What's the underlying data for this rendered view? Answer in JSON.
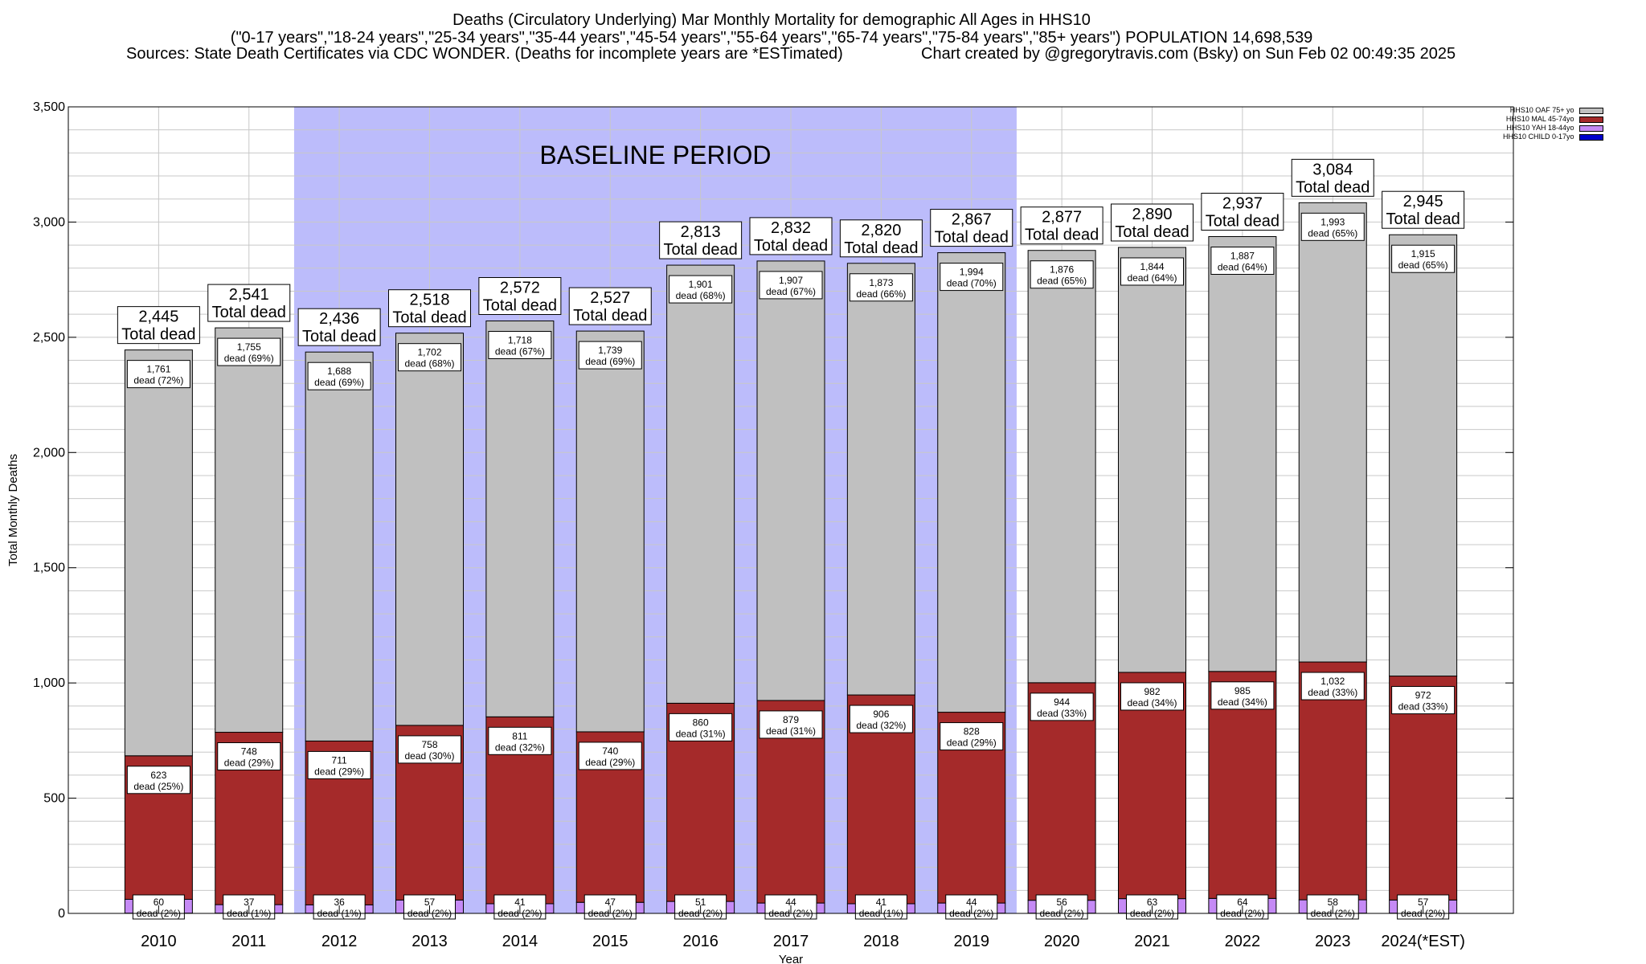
{
  "header": {
    "line1": "Deaths (Circulatory Underlying) Mar Monthly Mortality for demographic All Ages in HHS10",
    "line2": "(\"0-17 years\",\"18-24 years\",\"25-34 years\",\"35-44 years\",\"45-54 years\",\"55-64 years\",\"65-74 years\",\"75-84 years\",\"85+ years\") POPULATION 14,698,539",
    "line3_left": "Sources: State Death Certificates via CDC WONDER. (Deaths for incomplete years are *ESTimated)",
    "line3_right": "Chart created by @gregorytravis.com (Bsky) on Sun Feb 02 00:49:35 2025"
  },
  "chart_data": {
    "type": "bar",
    "stacked": true,
    "ylabel": "Total Monthly Deaths",
    "xlabel": "Year",
    "ylim": [
      0,
      3500
    ],
    "yticks": [
      "0",
      "500",
      "1,000",
      "1,500",
      "2,000",
      "2,500",
      "3,000",
      "3,500"
    ],
    "yticks_values": [
      0,
      500,
      1000,
      1500,
      2000,
      2500,
      3000,
      3500
    ],
    "grid": true,
    "baseline_label": "BASELINE PERIOD",
    "baseline_range": [
      "2012",
      "2019"
    ],
    "categories": [
      "2010",
      "2011",
      "2012",
      "2013",
      "2014",
      "2015",
      "2016",
      "2017",
      "2018",
      "2019",
      "2020",
      "2021",
      "2022",
      "2023",
      "2024(*EST)"
    ],
    "totals": [
      2445,
      2541,
      2436,
      2518,
      2572,
      2527,
      2813,
      2832,
      2820,
      2867,
      2877,
      2890,
      2937,
      3084,
      2945
    ],
    "total_labels": [
      "2,445",
      "2,541",
      "2,436",
      "2,518",
      "2,572",
      "2,527",
      "2,813",
      "2,832",
      "2,820",
      "2,867",
      "2,877",
      "2,890",
      "2,937",
      "3,084",
      "2,945"
    ],
    "total_suffix": "Total dead",
    "series": [
      {
        "name": "HHS10 CHILD 0-17yo",
        "color": "#0000cc",
        "values": [
          1,
          1,
          1,
          1,
          1,
          1,
          1,
          1,
          1,
          1,
          1,
          1,
          1,
          1,
          1
        ],
        "labels": [],
        "pcts": []
      },
      {
        "name": "HHS10 YAH 18-44yo",
        "color": "#c58af5",
        "values": [
          60,
          37,
          36,
          57,
          41,
          47,
          51,
          44,
          41,
          44,
          56,
          63,
          64,
          58,
          57
        ],
        "labels": [
          "60",
          "37",
          "36",
          "57",
          "41",
          "47",
          "51",
          "44",
          "41",
          "44",
          "56",
          "63",
          "64",
          "58",
          "57"
        ],
        "pcts": [
          "dead (2%)",
          "dead (1%)",
          "dead (1%)",
          "dead (2%)",
          "dead (2%)",
          "dead (2%)",
          "dead (2%)",
          "dead (2%)",
          "dead (1%)",
          "dead (2%)",
          "dead (2%)",
          "dead (2%)",
          "dead (2%)",
          "dead (2%)",
          "dead (2%)"
        ]
      },
      {
        "name": "HHS10 MAL 45-74yo",
        "color": "#a52a2a",
        "values": [
          623,
          748,
          711,
          758,
          811,
          740,
          860,
          879,
          906,
          828,
          944,
          982,
          985,
          1032,
          972
        ],
        "labels": [
          "623",
          "748",
          "711",
          "758",
          "811",
          "740",
          "860",
          "879",
          "906",
          "828",
          "944",
          "982",
          "985",
          "1,032",
          "972"
        ],
        "pcts": [
          "dead (25%)",
          "dead (29%)",
          "dead (29%)",
          "dead (30%)",
          "dead (32%)",
          "dead (29%)",
          "dead (31%)",
          "dead (31%)",
          "dead (32%)",
          "dead (29%)",
          "dead (33%)",
          "dead (34%)",
          "dead (34%)",
          "dead (33%)",
          "dead (33%)"
        ]
      },
      {
        "name": "HHS10 OAF 75+ yo",
        "color": "#c0c0c0",
        "values": [
          1761,
          1755,
          1688,
          1702,
          1718,
          1739,
          1901,
          1907,
          1873,
          1994,
          1876,
          1844,
          1887,
          1993,
          1915
        ],
        "labels": [
          "1,761",
          "1,755",
          "1,688",
          "1,702",
          "1,718",
          "1,739",
          "1,901",
          "1,907",
          "1,873",
          "1,994",
          "1,876",
          "1,844",
          "1,887",
          "1,993",
          "1,915"
        ],
        "pcts": [
          "dead (72%)",
          "dead (69%)",
          "dead (69%)",
          "dead (68%)",
          "dead (67%)",
          "dead (69%)",
          "dead (68%)",
          "dead (67%)",
          "dead (66%)",
          "dead (70%)",
          "dead (65%)",
          "dead (64%)",
          "dead (64%)",
          "dead (65%)",
          "dead (65%)"
        ]
      }
    ],
    "legend_order": [
      "HHS10 OAF 75+ yo",
      "HHS10 MAL 45-74yo",
      "HHS10 YAH 18-44yo",
      "HHS10 CHILD 0-17yo"
    ],
    "legend_position": "top-right",
    "colors": {
      "baseline": "#bcbcfb",
      "grid": "#c8c8c8"
    }
  }
}
